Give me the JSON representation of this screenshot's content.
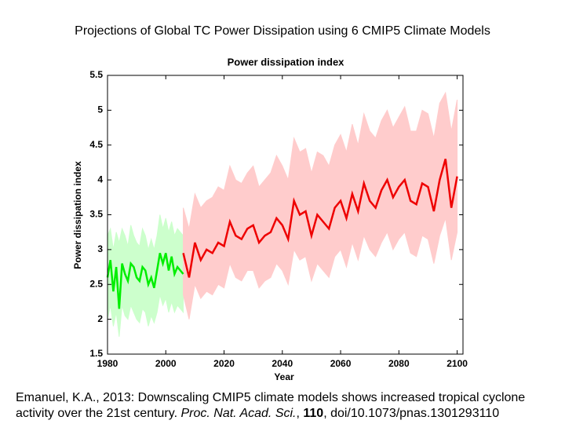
{
  "slide_title": "Projections of Global TC Power Dissipation using 6 CMIP5 Climate Models",
  "chart_data": {
    "type": "line",
    "title": "Power dissipation index",
    "x_label": "Year",
    "y_label": "Power dissipation index",
    "xlim": [
      1980,
      2102
    ],
    "xticks": [
      1980,
      2000,
      2020,
      2040,
      2060,
      2080,
      2100
    ],
    "ylim": [
      1.5,
      5.5
    ],
    "yticks": [
      1.5,
      2,
      2.5,
      3,
      3.5,
      4,
      4.5,
      5,
      5.5
    ],
    "grid": false,
    "series": [
      {
        "color": "#00ee00",
        "band_color": "#ccffcc",
        "x": [
          1980,
          1981,
          1982,
          1983,
          1984,
          1985,
          1986,
          1987,
          1988,
          1989,
          1990,
          1991,
          1992,
          1993,
          1994,
          1995,
          1996,
          1997,
          1998,
          1999,
          2000,
          2001,
          2002,
          2003,
          2004,
          2005,
          2006
        ],
        "values": [
          2.6,
          2.85,
          2.4,
          2.75,
          2.15,
          2.8,
          2.65,
          2.55,
          2.8,
          2.75,
          2.6,
          2.55,
          2.75,
          2.7,
          2.5,
          2.6,
          2.45,
          2.7,
          2.95,
          2.8,
          2.95,
          2.7,
          2.9,
          2.65,
          2.75,
          2.7,
          2.65
        ],
        "upper": [
          3.2,
          3.3,
          3.0,
          3.25,
          3.1,
          3.3,
          3.2,
          3.05,
          3.35,
          3.2,
          3.1,
          3.05,
          3.3,
          3.2,
          3.0,
          3.15,
          3.0,
          3.2,
          3.5,
          3.3,
          3.45,
          3.25,
          3.4,
          3.2,
          3.3,
          3.25,
          3.2
        ],
        "lower": [
          2.0,
          2.2,
          1.9,
          2.1,
          1.75,
          2.2,
          2.05,
          2.0,
          2.2,
          2.1,
          2.0,
          1.95,
          2.15,
          2.1,
          1.9,
          2.05,
          1.95,
          2.1,
          2.35,
          2.2,
          2.3,
          2.1,
          2.25,
          2.1,
          2.2,
          2.15,
          2.1
        ]
      },
      {
        "color": "#ee0000",
        "band_color": "#ffcccc",
        "x": [
          2006,
          2008,
          2010,
          2012,
          2014,
          2016,
          2018,
          2020,
          2022,
          2024,
          2026,
          2028,
          2030,
          2032,
          2034,
          2036,
          2038,
          2040,
          2042,
          2044,
          2046,
          2048,
          2050,
          2052,
          2054,
          2056,
          2058,
          2060,
          2062,
          2064,
          2066,
          2068,
          2070,
          2072,
          2074,
          2076,
          2078,
          2080,
          2082,
          2084,
          2086,
          2088,
          2090,
          2092,
          2094,
          2096,
          2098,
          2100
        ],
        "values": [
          2.95,
          2.6,
          3.1,
          2.85,
          3.0,
          2.95,
          3.1,
          3.05,
          3.4,
          3.2,
          3.15,
          3.3,
          3.35,
          3.1,
          3.2,
          3.25,
          3.45,
          3.35,
          3.15,
          3.7,
          3.5,
          3.55,
          3.2,
          3.5,
          3.4,
          3.3,
          3.6,
          3.7,
          3.45,
          3.8,
          3.55,
          3.95,
          3.7,
          3.6,
          3.85,
          4.0,
          3.75,
          3.9,
          4.0,
          3.7,
          3.65,
          3.95,
          3.9,
          3.55,
          4.0,
          4.3,
          3.6,
          4.05
        ],
        "upper": [
          3.6,
          3.3,
          3.8,
          3.6,
          3.7,
          3.75,
          3.9,
          3.85,
          4.2,
          4.0,
          3.95,
          4.1,
          4.2,
          3.9,
          4.0,
          4.1,
          4.35,
          4.2,
          4.0,
          4.6,
          4.4,
          4.45,
          4.1,
          4.4,
          4.35,
          4.2,
          4.5,
          4.65,
          4.4,
          4.8,
          4.5,
          4.95,
          4.7,
          4.6,
          4.85,
          5.0,
          4.75,
          4.9,
          5.05,
          4.7,
          4.7,
          5.0,
          4.95,
          4.6,
          5.1,
          5.25,
          4.7,
          5.15
        ],
        "lower": [
          2.35,
          2.0,
          2.5,
          2.3,
          2.4,
          2.35,
          2.5,
          2.45,
          2.8,
          2.6,
          2.55,
          2.7,
          2.7,
          2.45,
          2.55,
          2.6,
          2.8,
          2.7,
          2.5,
          3.0,
          2.85,
          2.9,
          2.55,
          2.8,
          2.7,
          2.6,
          2.9,
          3.0,
          2.75,
          3.1,
          2.85,
          3.2,
          3.0,
          2.9,
          3.1,
          3.25,
          3.0,
          3.15,
          3.25,
          2.95,
          2.9,
          3.2,
          3.15,
          2.8,
          3.2,
          3.45,
          2.85,
          3.25
        ]
      }
    ]
  },
  "caption": [
    "Emanuel, K.A., 2013: Downscaling CMIP5 climate models shows increased tropical cyclone activity over the 21st century. ",
    "Proc. Nat. Acad. Sci.",
    ", ",
    "110",
    ", doi/10.1073/pnas.1301293110"
  ]
}
